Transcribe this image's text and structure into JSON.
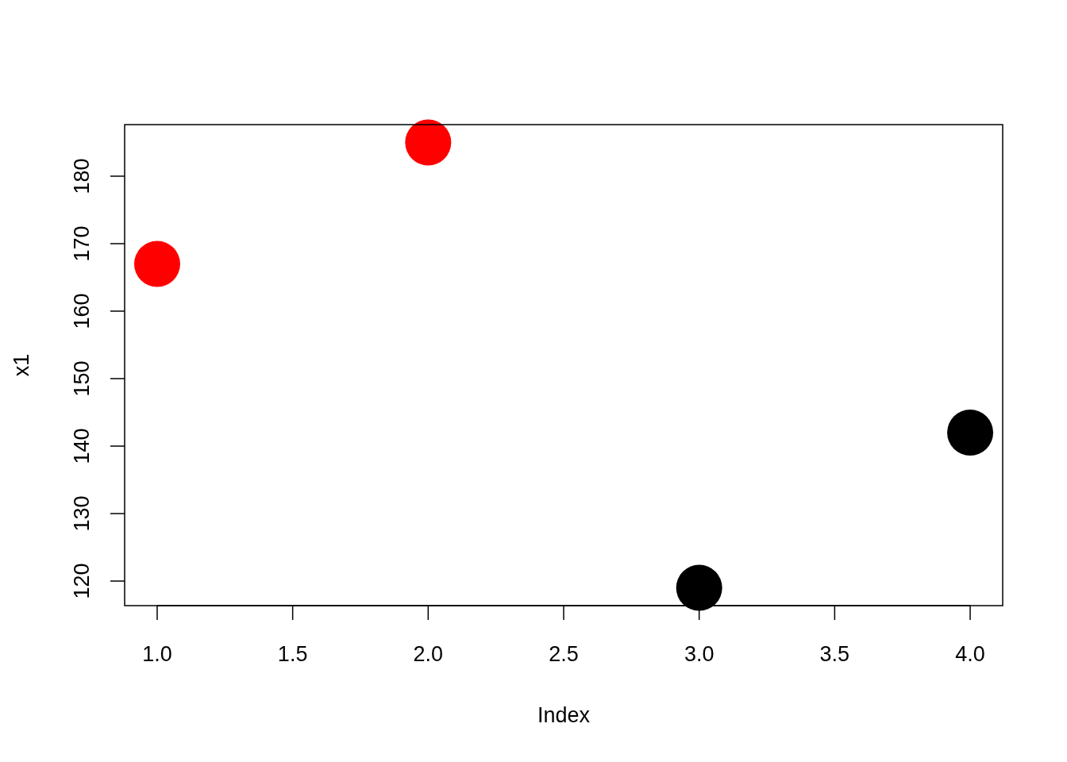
{
  "chart_data": {
    "type": "scatter",
    "xlabel": "Index",
    "ylabel": "x1",
    "xlim": [
      0.88,
      4.12
    ],
    "ylim": [
      116.36,
      187.64
    ],
    "xticks": [
      {
        "value": 1,
        "label": "1.0"
      },
      {
        "value": 1.5,
        "label": "1.5"
      },
      {
        "value": 2,
        "label": "2.0"
      },
      {
        "value": 2.5,
        "label": "2.5"
      },
      {
        "value": 3,
        "label": "3.0"
      },
      {
        "value": 3.5,
        "label": "3.5"
      },
      {
        "value": 4,
        "label": "4.0"
      }
    ],
    "yticks": [
      120,
      130,
      140,
      150,
      160,
      170,
      180
    ],
    "marker": "circle",
    "series": [
      {
        "color": "#ff0000",
        "x": [
          1,
          2
        ],
        "values": [
          167,
          185
        ]
      },
      {
        "color": "#000000",
        "x": [
          3,
          4
        ],
        "values": [
          119,
          142
        ]
      }
    ]
  }
}
